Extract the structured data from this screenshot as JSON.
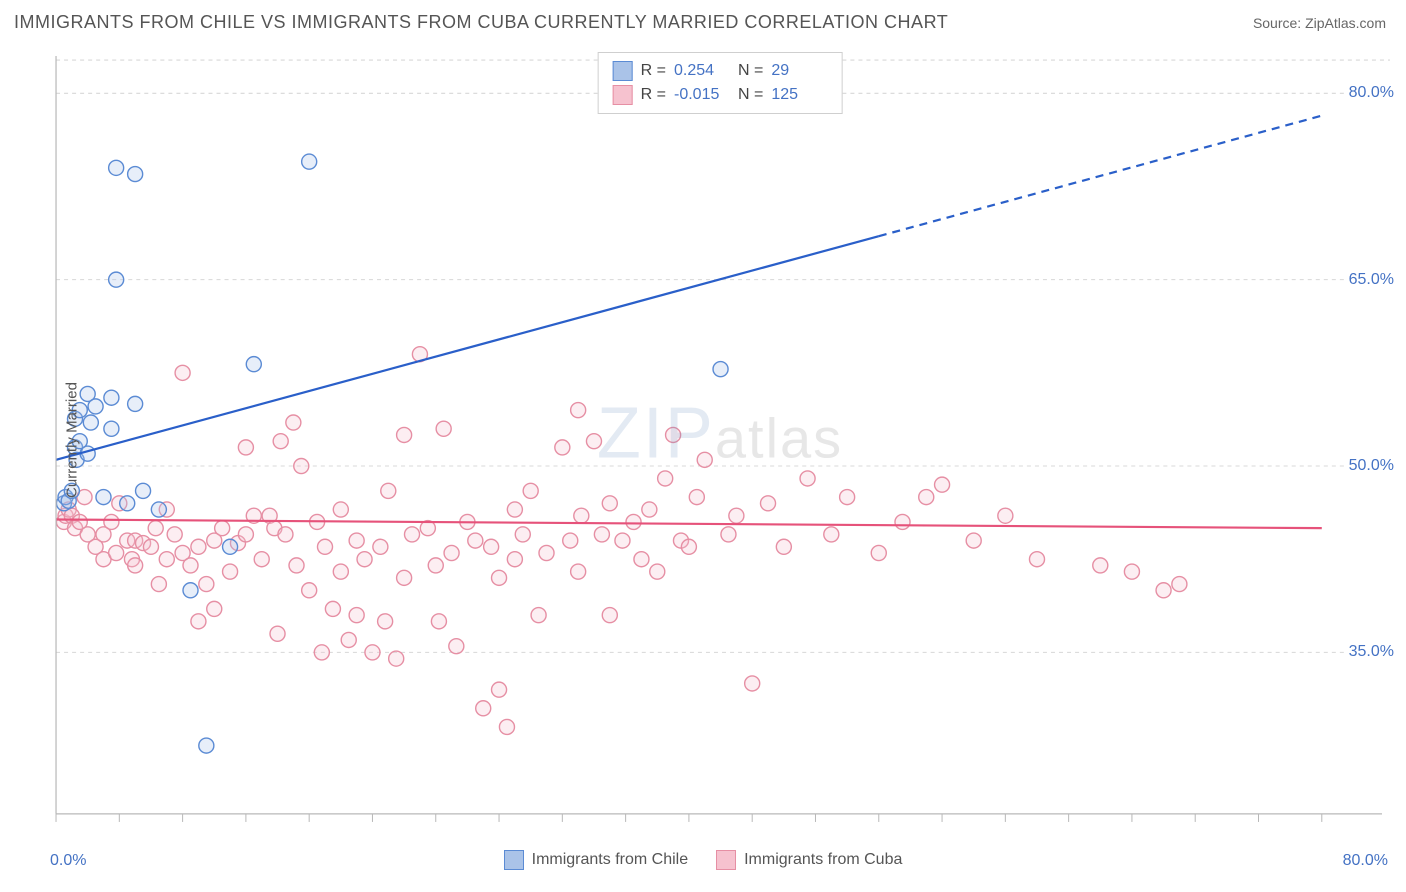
{
  "header": {
    "title": "IMMIGRANTS FROM CHILE VS IMMIGRANTS FROM CUBA CURRENTLY MARRIED CORRELATION CHART",
    "source_prefix": "Source: ",
    "source_link": "ZipAtlas.com"
  },
  "chart": {
    "type": "scatter",
    "ylabel": "Currently Married",
    "xlim": [
      0,
      80
    ],
    "ylim": [
      22,
      83
    ],
    "x_axis_label_min": "0.0%",
    "x_axis_label_max": "80.0%",
    "y_ticks": [
      35.0,
      50.0,
      65.0,
      80.0
    ],
    "y_tick_labels": [
      "35.0%",
      "50.0%",
      "65.0%",
      "80.0%"
    ],
    "x_minor_ticks": [
      0,
      4,
      8,
      12,
      16,
      20,
      24,
      28,
      32,
      36,
      40,
      44,
      48,
      52,
      56,
      60,
      64,
      68,
      72,
      76,
      80
    ],
    "background_color": "#ffffff",
    "grid_color": "#d8d8d8",
    "grid_dash": "4,4",
    "axis_color": "#b8b8b8",
    "marker_radius": 7.5,
    "marker_stroke_width": 1.4,
    "marker_fill_opacity": 0.28,
    "watermark": {
      "zip": "ZIP",
      "atlas": "atlas"
    },
    "series": [
      {
        "name": "Immigrants from Chile",
        "color_stroke": "#5b8bd4",
        "color_fill": "#aac3e8",
        "legend": {
          "R": "0.254",
          "N": "29"
        },
        "trend": {
          "x1": 0,
          "y1": 50.5,
          "x2_solid": 52,
          "y2_solid": 68.5,
          "x2_dash": 80,
          "y2_dash": 78.2,
          "color": "#2a5fc9",
          "width": 2.2
        },
        "points": [
          [
            0.5,
            47.0
          ],
          [
            0.6,
            47.5
          ],
          [
            0.8,
            47.2
          ],
          [
            1.0,
            48.0
          ],
          [
            1.2,
            51.5
          ],
          [
            1.2,
            53.8
          ],
          [
            1.3,
            50.5
          ],
          [
            1.5,
            54.5
          ],
          [
            1.5,
            52.0
          ],
          [
            2.0,
            55.8
          ],
          [
            2.0,
            51.0
          ],
          [
            2.2,
            53.5
          ],
          [
            2.5,
            54.8
          ],
          [
            3.0,
            47.5
          ],
          [
            3.5,
            55.5
          ],
          [
            3.5,
            53.0
          ],
          [
            3.8,
            74.0
          ],
          [
            3.8,
            65.0
          ],
          [
            4.5,
            47.0
          ],
          [
            5.0,
            73.5
          ],
          [
            5.0,
            55.0
          ],
          [
            5.5,
            48.0
          ],
          [
            6.5,
            46.5
          ],
          [
            8.5,
            40.0
          ],
          [
            9.5,
            27.5
          ],
          [
            11.0,
            43.5
          ],
          [
            12.5,
            58.2
          ],
          [
            16.0,
            74.5
          ],
          [
            42.0,
            57.8
          ]
        ]
      },
      {
        "name": "Immigrants from Cuba",
        "color_stroke": "#e68fa4",
        "color_fill": "#f6c2cf",
        "legend": {
          "R": "-0.015",
          "N": "125"
        },
        "trend": {
          "x1": 0,
          "y1": 45.7,
          "x2_solid": 80,
          "y2_solid": 45.0,
          "color": "#e6527a",
          "width": 2.2
        },
        "points": [
          [
            0.5,
            45.5
          ],
          [
            0.6,
            46.0
          ],
          [
            0.8,
            46.5
          ],
          [
            1.0,
            46.0
          ],
          [
            1.2,
            45.0
          ],
          [
            1.5,
            45.5
          ],
          [
            1.8,
            47.5
          ],
          [
            2.0,
            44.5
          ],
          [
            2.5,
            43.5
          ],
          [
            3.0,
            44.5
          ],
          [
            3.0,
            42.5
          ],
          [
            3.5,
            45.5
          ],
          [
            3.8,
            43.0
          ],
          [
            4.0,
            47.0
          ],
          [
            4.5,
            44.0
          ],
          [
            4.8,
            42.5
          ],
          [
            5.0,
            44.0
          ],
          [
            5.0,
            42.0
          ],
          [
            5.5,
            43.8
          ],
          [
            6.0,
            43.5
          ],
          [
            6.3,
            45.0
          ],
          [
            6.5,
            40.5
          ],
          [
            7.0,
            46.5
          ],
          [
            7.0,
            42.5
          ],
          [
            7.5,
            44.5
          ],
          [
            8.0,
            43.0
          ],
          [
            8.0,
            57.5
          ],
          [
            8.5,
            42.0
          ],
          [
            9.0,
            43.5
          ],
          [
            9.0,
            37.5
          ],
          [
            9.5,
            40.5
          ],
          [
            10.0,
            44.0
          ],
          [
            10.0,
            38.5
          ],
          [
            10.5,
            45.0
          ],
          [
            11.0,
            41.5
          ],
          [
            11.5,
            43.8
          ],
          [
            12.0,
            44.5
          ],
          [
            12.0,
            51.5
          ],
          [
            12.5,
            46.0
          ],
          [
            13.0,
            42.5
          ],
          [
            13.5,
            46.0
          ],
          [
            13.8,
            45.0
          ],
          [
            14.0,
            36.5
          ],
          [
            14.2,
            52.0
          ],
          [
            14.5,
            44.5
          ],
          [
            15.0,
            53.5
          ],
          [
            15.2,
            42.0
          ],
          [
            15.5,
            50.0
          ],
          [
            16.0,
            40.0
          ],
          [
            16.5,
            45.5
          ],
          [
            16.8,
            35.0
          ],
          [
            17.0,
            43.5
          ],
          [
            17.5,
            38.5
          ],
          [
            18.0,
            46.5
          ],
          [
            18.0,
            41.5
          ],
          [
            18.5,
            36.0
          ],
          [
            19.0,
            44.0
          ],
          [
            19.0,
            38.0
          ],
          [
            19.5,
            42.5
          ],
          [
            20.0,
            35.0
          ],
          [
            20.5,
            43.5
          ],
          [
            20.8,
            37.5
          ],
          [
            21.0,
            48.0
          ],
          [
            21.5,
            34.5
          ],
          [
            22.0,
            52.5
          ],
          [
            22.0,
            41.0
          ],
          [
            22.5,
            44.5
          ],
          [
            23.0,
            59.0
          ],
          [
            23.5,
            45.0
          ],
          [
            24.0,
            42.0
          ],
          [
            24.2,
            37.5
          ],
          [
            24.5,
            53.0
          ],
          [
            25.0,
            43.0
          ],
          [
            25.3,
            35.5
          ],
          [
            26.0,
            45.5
          ],
          [
            26.5,
            44.0
          ],
          [
            27.0,
            30.5
          ],
          [
            27.5,
            43.5
          ],
          [
            28.0,
            41.0
          ],
          [
            28.0,
            32.0
          ],
          [
            28.5,
            29.0
          ],
          [
            29.0,
            46.5
          ],
          [
            29.0,
            42.5
          ],
          [
            29.5,
            44.5
          ],
          [
            30.0,
            48.0
          ],
          [
            30.5,
            38.0
          ],
          [
            31.0,
            43.0
          ],
          [
            32.0,
            51.5
          ],
          [
            32.5,
            44.0
          ],
          [
            33.0,
            41.5
          ],
          [
            33.2,
            46.0
          ],
          [
            33.0,
            54.5
          ],
          [
            34.0,
            52.0
          ],
          [
            34.5,
            44.5
          ],
          [
            35.0,
            47.0
          ],
          [
            35.0,
            38.0
          ],
          [
            35.8,
            44.0
          ],
          [
            36.5,
            45.5
          ],
          [
            37.0,
            42.5
          ],
          [
            37.5,
            46.5
          ],
          [
            38.0,
            41.5
          ],
          [
            38.5,
            49.0
          ],
          [
            39.0,
            52.5
          ],
          [
            39.5,
            44.0
          ],
          [
            40.0,
            43.5
          ],
          [
            40.5,
            47.5
          ],
          [
            41.0,
            50.5
          ],
          [
            42.5,
            44.5
          ],
          [
            43.0,
            46.0
          ],
          [
            44.0,
            32.5
          ],
          [
            45.0,
            47.0
          ],
          [
            46.0,
            43.5
          ],
          [
            47.5,
            49.0
          ],
          [
            49.0,
            44.5
          ],
          [
            50.0,
            47.5
          ],
          [
            52.0,
            43.0
          ],
          [
            53.5,
            45.5
          ],
          [
            55.0,
            47.5
          ],
          [
            56.0,
            48.5
          ],
          [
            58.0,
            44.0
          ],
          [
            60.0,
            46.0
          ],
          [
            62.0,
            42.5
          ],
          [
            66.0,
            42.0
          ],
          [
            68.0,
            41.5
          ],
          [
            70.0,
            40.0
          ],
          [
            71.0,
            40.5
          ]
        ]
      }
    ]
  },
  "legend_bottom": {
    "chile": "Immigrants from Chile",
    "cuba": "Immigrants from Cuba"
  }
}
